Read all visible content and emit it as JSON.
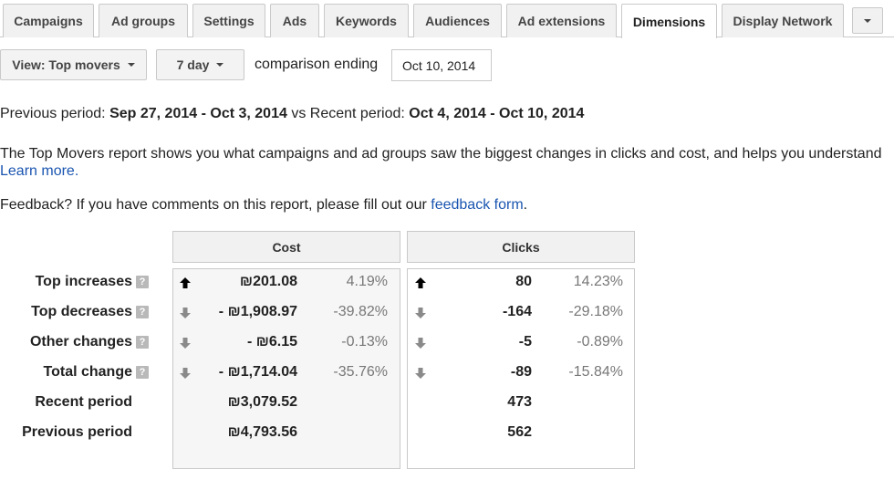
{
  "tabs": [
    {
      "label": "Campaigns"
    },
    {
      "label": "Ad groups"
    },
    {
      "label": "Settings"
    },
    {
      "label": "Ads"
    },
    {
      "label": "Keywords"
    },
    {
      "label": "Audiences"
    },
    {
      "label": "Ad extensions"
    },
    {
      "label": "Dimensions",
      "active": true
    },
    {
      "label": "Display Network"
    }
  ],
  "toolbar": {
    "view_label": "View: Top movers",
    "period_label": "7 day",
    "comparison_label": "comparison ending",
    "comparison_date": "Oct 10, 2014"
  },
  "period_info": {
    "prev_label": "Previous period:",
    "prev_range": "Sep 27, 2014 - Oct 3, 2014",
    "vs_label": "vs Recent period:",
    "recent_range": "Oct 4, 2014 - Oct 10, 2014"
  },
  "description": {
    "text": "The Top Movers report shows you what campaigns and ad groups saw the biggest changes in clicks and cost, and helps you understand",
    "learn_more": "Learn more."
  },
  "feedback": {
    "prefix": "Feedback? If you have comments on this report, please fill out our",
    "link": "feedback form",
    "suffix": "."
  },
  "table": {
    "cost_header": "Cost",
    "clicks_header": "Clicks",
    "rows": [
      {
        "label": "Top increases",
        "help": true,
        "direction": "up",
        "cost": "₪201.08",
        "cost_pct": "4.19%",
        "clicks": "80",
        "clicks_pct": "14.23%"
      },
      {
        "label": "Top decreases",
        "help": true,
        "direction": "down",
        "cost": "- ₪1,908.97",
        "cost_pct": "-39.82%",
        "clicks": "-164",
        "clicks_pct": "-29.18%"
      },
      {
        "label": "Other changes",
        "help": true,
        "direction": "down",
        "cost": "- ₪6.15",
        "cost_pct": "-0.13%",
        "clicks": "-5",
        "clicks_pct": "-0.89%"
      },
      {
        "label": "Total change",
        "help": true,
        "direction": "down",
        "cost": "- ₪1,714.04",
        "cost_pct": "-35.76%",
        "clicks": "-89",
        "clicks_pct": "-15.84%"
      },
      {
        "label": "Recent period",
        "help": false,
        "direction": "none",
        "cost": "₪3,079.52",
        "cost_pct": "",
        "clicks": "473",
        "clicks_pct": ""
      },
      {
        "label": "Previous period",
        "help": false,
        "direction": "none",
        "cost": "₪4,793.56",
        "cost_pct": "",
        "clicks": "562",
        "clicks_pct": ""
      }
    ]
  },
  "icons": {
    "up": "arrow-up-icon",
    "down": "arrow-down-icon",
    "help": "help-icon",
    "caret": "caret-down-icon"
  },
  "colors": {
    "link": "#1a55b0",
    "arrow_up": "#000000",
    "arrow_down": "#8a8a8a",
    "border": "#c9c9c9"
  }
}
